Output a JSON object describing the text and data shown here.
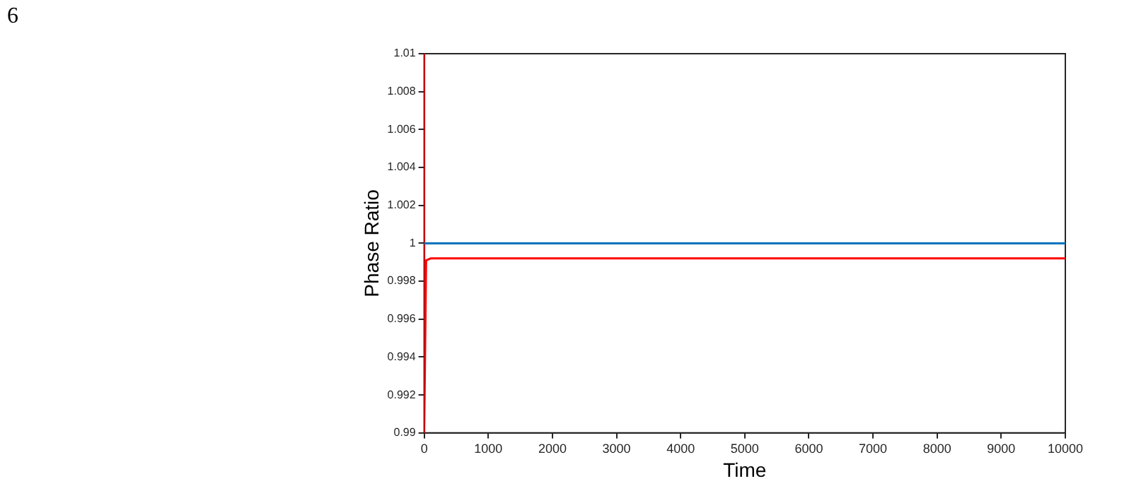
{
  "chart_data": {
    "type": "line",
    "xlabel": "Time",
    "ylabel": "Phase Ratio",
    "annotations": [
      "6"
    ],
    "xlim": [
      0,
      10000
    ],
    "ylim": [
      0.99,
      1.01
    ],
    "xticks": [
      0,
      1000,
      2000,
      3000,
      4000,
      5000,
      6000,
      7000,
      8000,
      9000,
      10000
    ],
    "yticks": [
      0.99,
      0.992,
      0.994,
      0.996,
      0.998,
      1,
      1.002,
      1.004,
      1.006,
      1.008,
      1.01
    ],
    "grid": false,
    "legend": false,
    "marker": "none",
    "line_style": "solid",
    "series": [
      {
        "color": "#0072bd",
        "x": [
          0,
          10000
        ],
        "values": [
          1,
          1
        ]
      },
      {
        "color": "#ff0000",
        "x": [
          0,
          0,
          30,
          100,
          10000
        ],
        "values": [
          1.01,
          0.99,
          0.9991,
          0.9992,
          0.9992
        ]
      }
    ]
  }
}
